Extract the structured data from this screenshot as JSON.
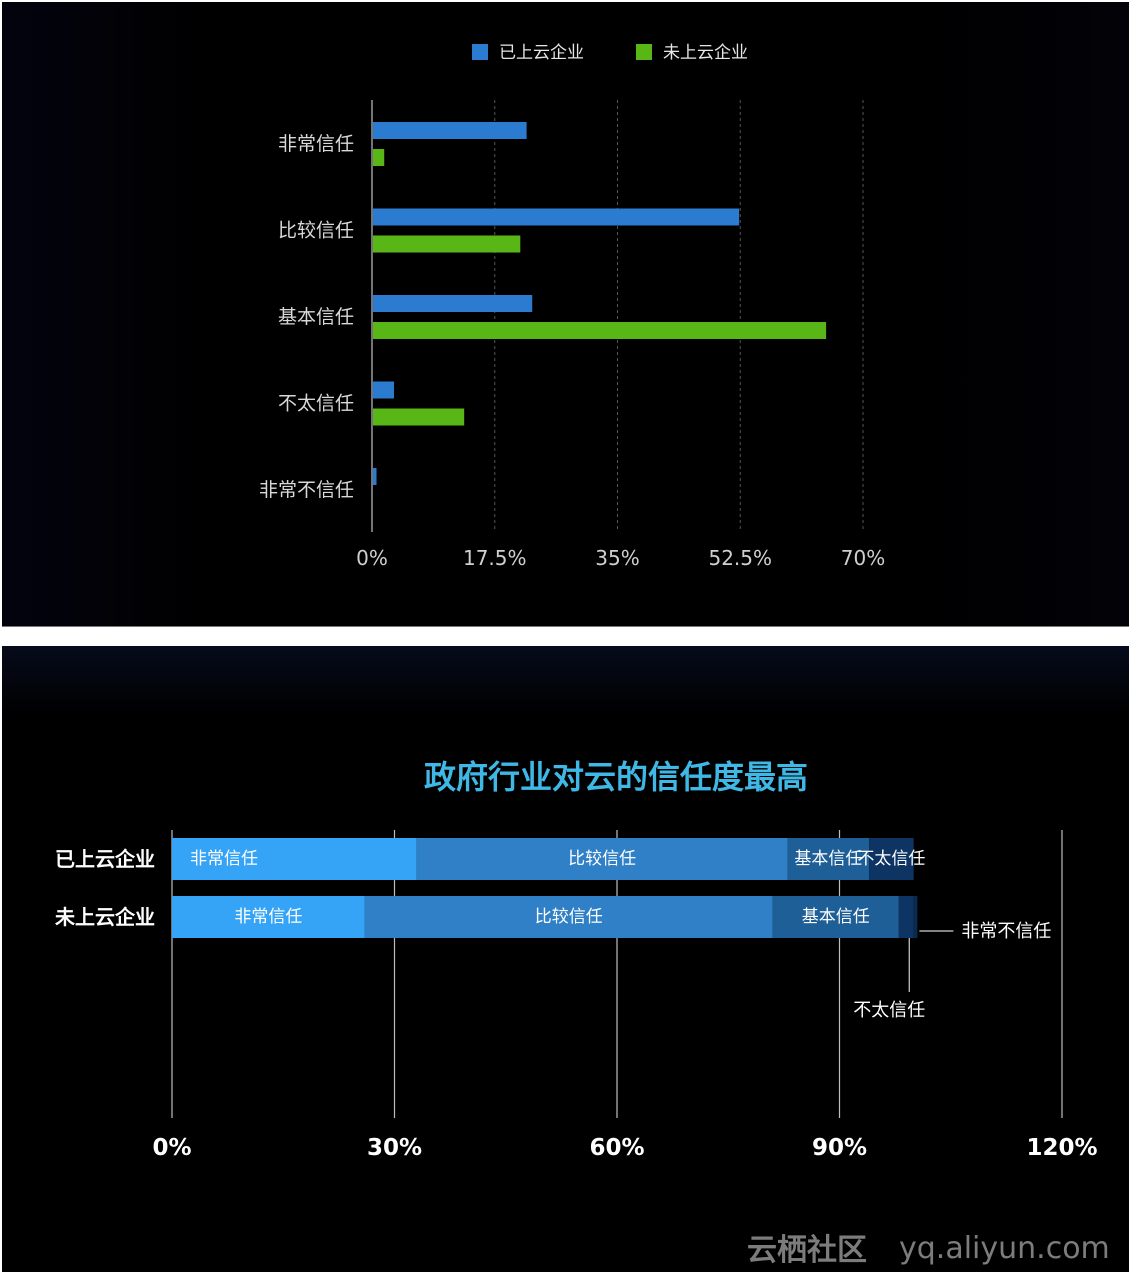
{
  "chart_data": [
    {
      "type": "bar",
      "orientation": "horizontal",
      "categories": [
        "非常信任",
        "比较信任",
        "基本信任",
        "不太信任",
        "非常不信任"
      ],
      "series": [
        {
          "name": "已上云企业",
          "color": "#2b7bd0",
          "values": [
            21.9,
            52.2,
            22.7,
            3.0,
            0.5
          ]
        },
        {
          "name": "未上云企业",
          "color": "#58b717",
          "values": [
            1.6,
            21.0,
            64.6,
            13.0,
            0
          ]
        }
      ],
      "ticks": [
        "0%",
        "17.5%",
        "35%",
        "52.5%",
        "70%"
      ],
      "xlim": [
        0,
        70
      ],
      "legend": "top",
      "grid": true
    },
    {
      "type": "bar",
      "orientation": "horizontal",
      "stacked": true,
      "title": "政府行业对云的信任度最高",
      "categories": [
        "已上云企业",
        "未上云企业"
      ],
      "segments": [
        "非常信任",
        "比较信任",
        "基本信任",
        "不太信任",
        "非常不信任"
      ],
      "segment_colors": [
        "#35a4f6",
        "#2f80c6",
        "#1e5f98",
        "#0d3463",
        "#0a2a52"
      ],
      "values": [
        [
          33,
          50,
          11,
          6,
          0
        ],
        [
          26,
          55,
          17,
          2,
          0.5
        ]
      ],
      "ticks": [
        "0%",
        "30%",
        "60%",
        "90%",
        "120%"
      ],
      "xlim": [
        0,
        120
      ],
      "annotations": [
        "不太信任",
        "非常不信任"
      ],
      "grid": true
    }
  ],
  "watermark": {
    "cn": "云栖社区",
    "en": "yq.aliyun.com"
  }
}
